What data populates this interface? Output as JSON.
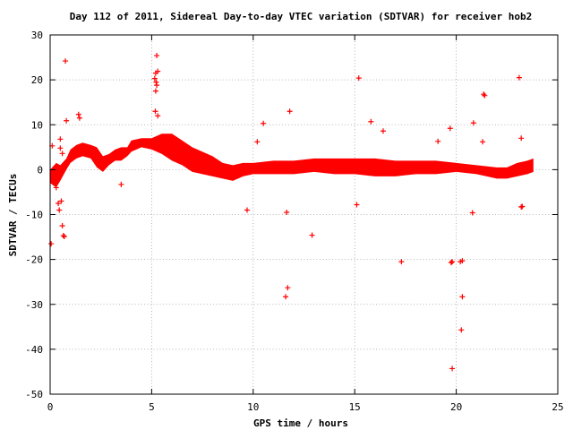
{
  "chart_data": {
    "type": "scatter",
    "title": "Day 112 of 2011, Sidereal Day-to-day VTEC variation (SDTVAR) for receiver hob2",
    "xlabel": "GPS time / hours",
    "ylabel": "SDTVAR / TECUs",
    "xlim": [
      0,
      25
    ],
    "ylim": [
      -50,
      30
    ],
    "xticks": [
      0,
      5,
      10,
      15,
      20,
      25
    ],
    "yticks": [
      -50,
      -40,
      -30,
      -20,
      -10,
      0,
      10,
      20,
      30
    ],
    "grid": true,
    "marker": "+",
    "color": "#ff0000",
    "dense_band": {
      "x": [
        0.0,
        0.3,
        0.5,
        0.8,
        1.0,
        1.3,
        1.6,
        2.0,
        2.3,
        2.6,
        2.9,
        3.2,
        3.5,
        3.8,
        4.0,
        4.5,
        5.0,
        5.5,
        6.0,
        6.5,
        7.0,
        7.5,
        8.0,
        8.5,
        9.0,
        9.5,
        10.0,
        11.0,
        12.0,
        13.0,
        14.0,
        15.0,
        16.0,
        17.0,
        18.0,
        19.0,
        20.0,
        21.0,
        22.0,
        22.5,
        23.0,
        23.5,
        23.8
      ],
      "upper": [
        0.0,
        1.5,
        1.0,
        2.5,
        4.5,
        5.5,
        6.0,
        5.5,
        5.0,
        3.0,
        3.5,
        4.5,
        5.0,
        5.0,
        6.5,
        7.0,
        7.0,
        8.0,
        8.0,
        6.5,
        5.0,
        4.0,
        3.0,
        1.5,
        1.0,
        1.5,
        1.5,
        2.0,
        2.0,
        2.5,
        2.5,
        2.5,
        2.5,
        2.0,
        2.0,
        2.0,
        1.5,
        1.0,
        0.5,
        0.5,
        1.5,
        2.0,
        2.5
      ],
      "lower": [
        -3.0,
        -4.0,
        -2.5,
        0.0,
        1.5,
        2.5,
        3.0,
        2.5,
        0.5,
        -0.5,
        1.0,
        2.0,
        2.0,
        3.0,
        4.0,
        5.0,
        4.5,
        3.5,
        2.0,
        1.0,
        -0.5,
        -1.0,
        -1.5,
        -2.0,
        -2.5,
        -1.5,
        -1.0,
        -1.0,
        -1.0,
        -0.5,
        -1.0,
        -1.0,
        -1.5,
        -1.5,
        -1.0,
        -1.0,
        -0.5,
        -1.0,
        -2.0,
        -2.0,
        -1.5,
        -1.0,
        -0.5
      ]
    },
    "outliers": {
      "x": [
        0.75,
        0.8,
        1.4,
        1.45,
        0.1,
        0.05,
        0.5,
        0.55,
        0.6,
        0.65,
        0.7,
        0.45,
        0.5,
        0.3,
        0.6,
        0.4,
        5.25,
        5.2,
        5.3,
        5.15,
        5.22,
        5.18,
        5.3,
        5.2,
        5.25,
        3.5,
        10.5,
        11.8,
        11.7,
        11.6,
        12.9,
        11.65,
        10.2,
        9.7,
        15.2,
        15.1,
        15.8,
        16.4,
        17.3,
        19.1,
        19.7,
        19.8,
        19.75,
        19.8,
        20.2,
        20.3,
        20.25,
        20.3,
        20.85,
        20.8,
        21.3,
        21.35,
        21.4,
        23.1,
        23.2,
        23.25,
        23.2
      ],
      "y": [
        24.2,
        10.9,
        12.3,
        11.5,
        5.3,
        -16.5,
        6.8,
        -7.0,
        -12.5,
        -14.7,
        -14.9,
        -9.0,
        4.8,
        -4.0,
        3.6,
        -7.5,
        25.4,
        21.5,
        21.9,
        20.3,
        19.5,
        13.0,
        12.0,
        17.5,
        18.8,
        -3.3,
        10.3,
        13.0,
        -26.3,
        -28.3,
        -14.6,
        -9.5,
        6.2,
        -9.0,
        20.4,
        -7.8,
        10.7,
        8.6,
        -20.5,
        6.3,
        9.2,
        -20.5,
        -20.7,
        -44.3,
        -20.5,
        -28.3,
        -35.7,
        -20.3,
        10.4,
        -9.6,
        6.2,
        16.8,
        16.5,
        20.5,
        7.0,
        -8.2,
        -8.3
      ]
    }
  }
}
